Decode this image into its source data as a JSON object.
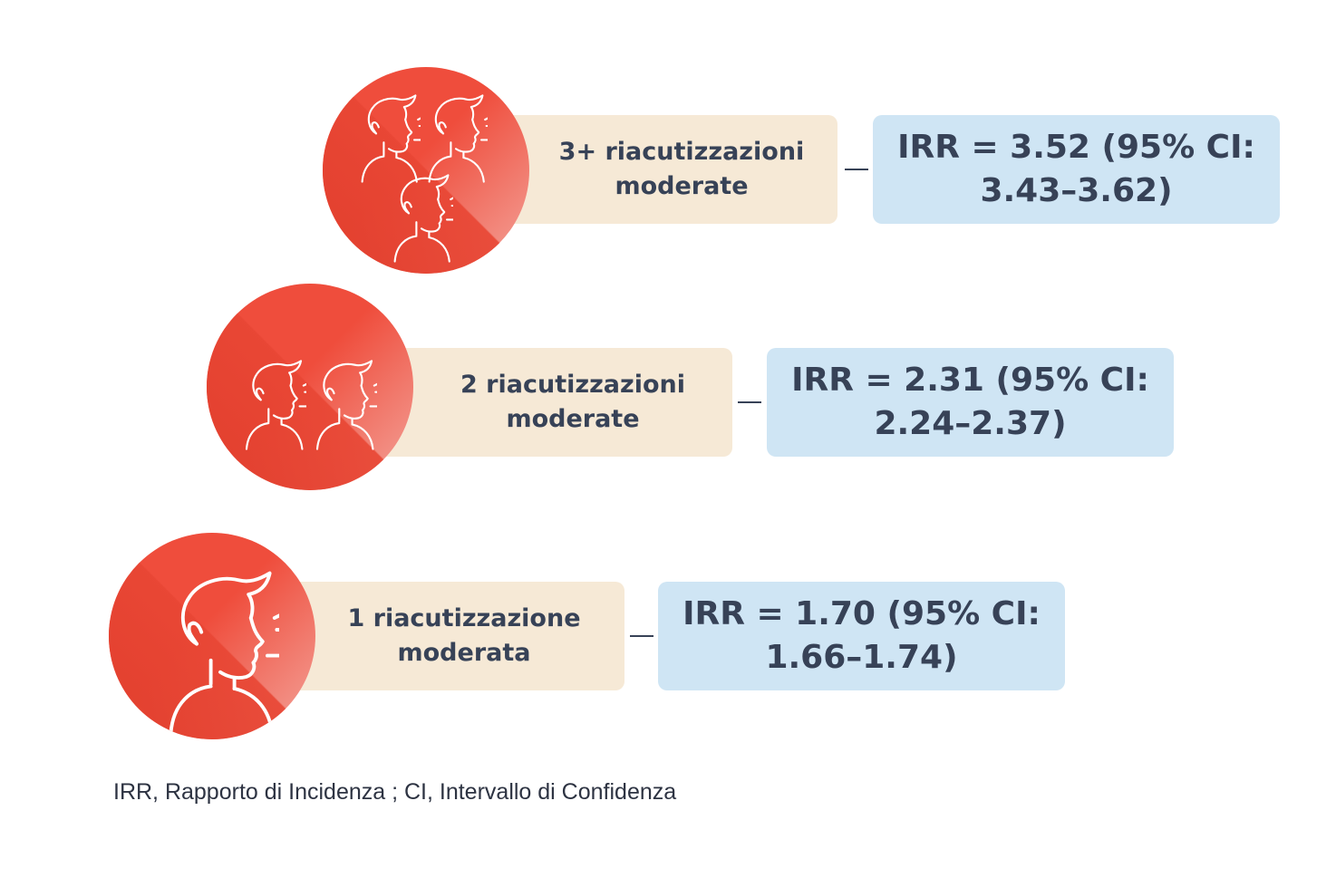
{
  "rows": [
    {
      "label_line1": "3+ riacutizzazioni",
      "label_line2": "moderate",
      "irr_line1": "IRR = 3.52 (95% CI:",
      "irr_line2": "3.43–3.62)",
      "icon": "three-people-coughing-icon"
    },
    {
      "label_line1": "2 riacutizzazioni",
      "label_line2": "moderate",
      "irr_line1": "IRR = 2.31 (95% CI:",
      "irr_line2": "2.24–2.37)",
      "icon": "two-people-coughing-icon"
    },
    {
      "label_line1": "1 riacutizzazione",
      "label_line2": "moderata",
      "irr_line1": "IRR = 1.70 (95% CI:",
      "irr_line2": "1.66–1.74)",
      "icon": "person-coughing-icon"
    }
  ],
  "footnote": "IRR, Rapporto di Incidenza ; CI, Intervallo di Confidenza",
  "colors": {
    "circle": "#ef4d3c",
    "label_bg": "#f6e9d6",
    "irr_bg": "#cfe5f4",
    "text": "#374257"
  }
}
